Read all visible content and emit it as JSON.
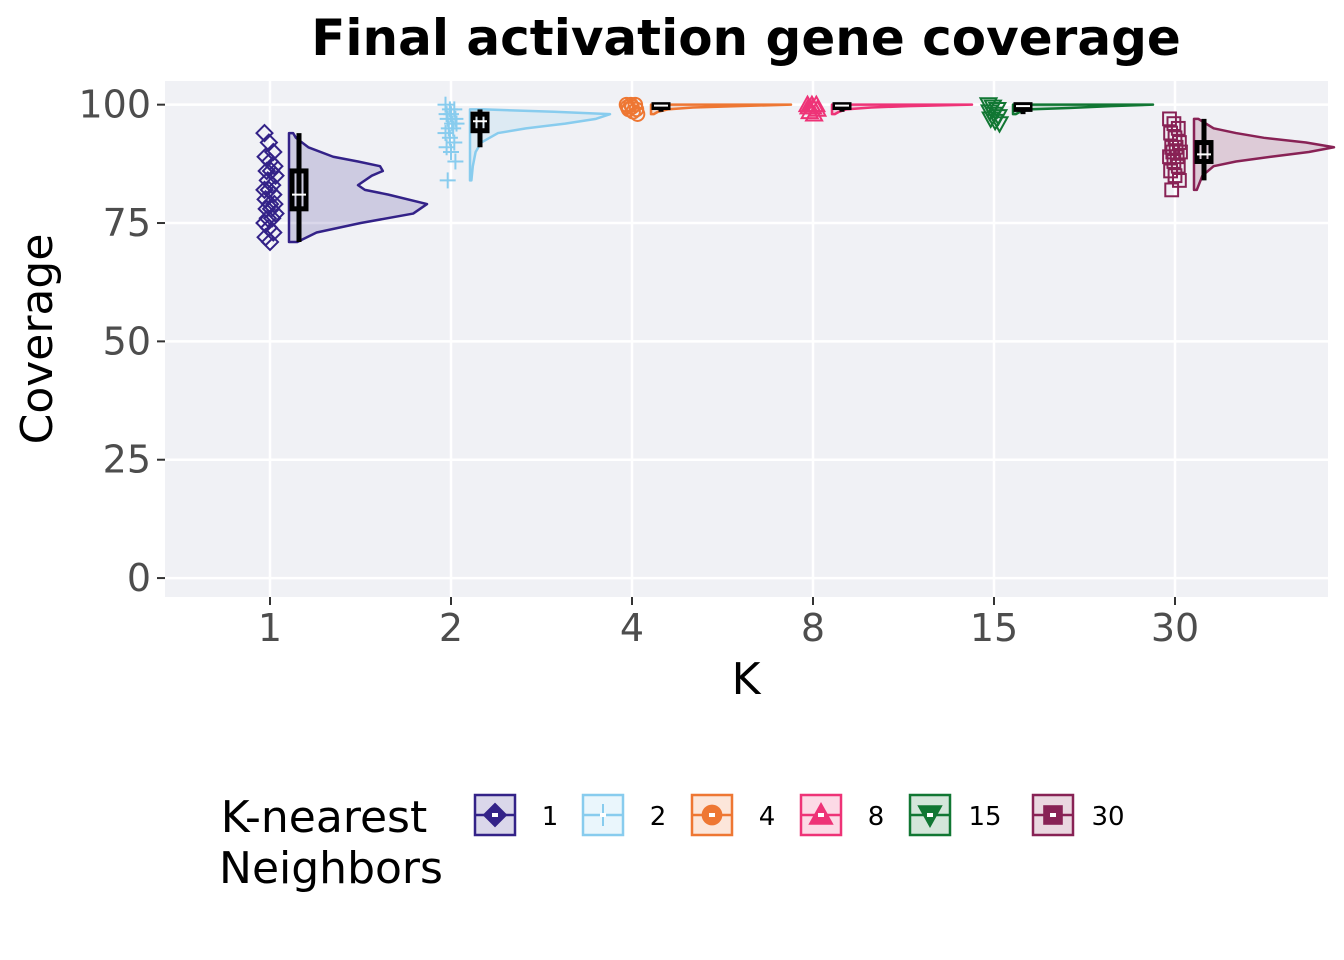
{
  "chart_data": {
    "type": "raincloud",
    "title": "Final activation gene coverage",
    "xlabel": "K",
    "ylabel": "Coverage",
    "ylim": [
      -4,
      105
    ],
    "yticks": [
      0,
      25,
      50,
      75,
      100
    ],
    "grid": true,
    "categories": [
      "1",
      "2",
      "4",
      "8",
      "15",
      "30"
    ],
    "legend": {
      "title_lines": [
        "K-nearest",
        "Neighbors"
      ],
      "position": "bottom"
    },
    "series": [
      {
        "name": "1",
        "color": "#332288",
        "shape": "diamond",
        "points": [
          94,
          92,
          90,
          89,
          88,
          87,
          86,
          86,
          85,
          84,
          83,
          82,
          82,
          81,
          80,
          79,
          79,
          78,
          78,
          77,
          76,
          76,
          75,
          74,
          73,
          72,
          71
        ],
        "box": {
          "min": 71,
          "q1": 78,
          "median": 81,
          "q3": 86,
          "max": 94
        },
        "density": {
          "y": [
            71,
            73,
            75,
            77,
            79,
            81,
            82,
            83,
            85,
            86,
            87,
            88,
            89,
            91,
            93,
            94
          ],
          "w": [
            0.06,
            0.2,
            0.52,
            0.9,
            1.0,
            0.72,
            0.55,
            0.5,
            0.6,
            0.68,
            0.66,
            0.5,
            0.32,
            0.14,
            0.05,
            0.03
          ]
        }
      },
      {
        "name": "2",
        "color": "#88CCEE",
        "shape": "cross",
        "points": [
          100,
          99,
          99,
          98,
          98,
          97,
          97,
          96,
          96,
          95,
          95,
          94,
          93,
          92,
          91,
          90,
          88,
          84
        ],
        "box": {
          "min": 91,
          "q1": 94.5,
          "median": 96.5,
          "q3": 98,
          "max": 99
        },
        "density": {
          "y": [
            84,
            87,
            90,
            92,
            94,
            95,
            96,
            97,
            98,
            98.5,
            99
          ],
          "w": [
            0.01,
            0.02,
            0.04,
            0.08,
            0.2,
            0.4,
            0.68,
            0.9,
            1.0,
            0.6,
            0.1
          ]
        }
      },
      {
        "name": "4",
        "color": "#EE7733",
        "shape": "circle",
        "points": [
          100,
          100,
          100,
          99.5,
          99.5,
          99,
          99,
          98.5,
          98
        ],
        "box": {
          "min": 98.5,
          "q1": 99.4,
          "median": 99.8,
          "q3": 100,
          "max": 100
        },
        "density": {
          "y": [
            98,
            98.5,
            99,
            99.4,
            99.7,
            100
          ],
          "w": [
            0.02,
            0.05,
            0.12,
            0.3,
            0.62,
            1.0
          ]
        }
      },
      {
        "name": "8",
        "color": "#EE3377",
        "shape": "triangle-up",
        "points": [
          100,
          100,
          100,
          99.5,
          99.5,
          99,
          98.5,
          98
        ],
        "box": {
          "min": 98.5,
          "q1": 99.4,
          "median": 99.8,
          "q3": 100,
          "max": 100
        },
        "density": {
          "y": [
            98,
            98.5,
            99,
            99.4,
            99.7,
            100
          ],
          "w": [
            0.02,
            0.05,
            0.1,
            0.28,
            0.55,
            1.0
          ]
        }
      },
      {
        "name": "15",
        "color": "#117733",
        "shape": "triangle-down",
        "points": [
          100,
          99.5,
          99,
          98.5,
          98,
          97.5,
          97,
          96.5,
          96
        ],
        "box": {
          "min": 98,
          "q1": 99,
          "median": 99.7,
          "q3": 100,
          "max": 100
        },
        "density": {
          "y": [
            98,
            98.5,
            99,
            99.3,
            99.7,
            100
          ],
          "w": [
            0.02,
            0.05,
            0.12,
            0.4,
            0.7,
            1.0
          ]
        }
      },
      {
        "name": "30",
        "color": "#882255",
        "shape": "square",
        "points": [
          97,
          96,
          95,
          94,
          93,
          92,
          91,
          91,
          90,
          90,
          89,
          89,
          88,
          87,
          86,
          85,
          84,
          82
        ],
        "box": {
          "min": 84,
          "q1": 88,
          "median": 89.5,
          "q3": 92,
          "max": 97
        },
        "density": {
          "y": [
            82,
            85,
            87,
            88,
            89,
            90,
            91,
            92,
            93,
            94,
            95,
            97
          ],
          "w": [
            0.02,
            0.06,
            0.14,
            0.3,
            0.55,
            0.82,
            1.0,
            0.8,
            0.5,
            0.3,
            0.14,
            0.03
          ]
        }
      }
    ]
  }
}
